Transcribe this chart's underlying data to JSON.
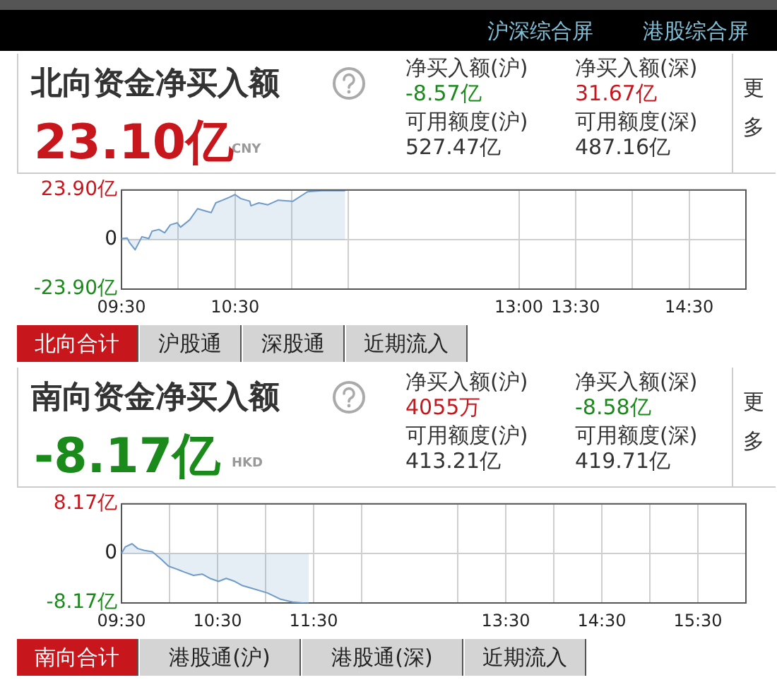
{
  "chart_data": [
    {
      "type": "other",
      "annotations": [
        "沪深综合屏",
        "港股综合屏"
      ]
    },
    {
      "type": "area",
      "title": "北向资金净买入额",
      "color": "#6f9bc8",
      "grid": true,
      "x": [
        9.5,
        9.55,
        9.57,
        9.62,
        9.68,
        9.74,
        9.77,
        9.83,
        9.88,
        9.93,
        9.99,
        10.02,
        10.1,
        10.17,
        10.25,
        10.29,
        10.33,
        10.39,
        10.45,
        10.5,
        10.55,
        10.63,
        10.64,
        10.71,
        10.79,
        10.88,
        11.01,
        11.1,
        11.14,
        11.26,
        11.39,
        11.47
      ],
      "values": [
        0.5,
        0.8,
        -1.4,
        -4.9,
        1.4,
        0.5,
        4.1,
        4.9,
        3.3,
        7.1,
        8.1,
        6.0,
        9.5,
        14.9,
        13.6,
        13.0,
        17.7,
        19.0,
        20.4,
        21.7,
        19.8,
        18.5,
        16.3,
        17.7,
        16.8,
        19.0,
        18.5,
        21.7,
        23.1,
        23.6,
        23.6,
        23.6
      ],
      "xlim": [
        9.5,
        15
      ],
      "xticks": [
        {
          "value": 9.5,
          "label": "09:30"
        },
        {
          "value": 10,
          "label": null
        },
        {
          "value": 10.5,
          "label": "10:30"
        },
        {
          "value": 11,
          "label": null
        },
        {
          "value": 11.5,
          "label": null
        },
        {
          "value": 13,
          "label": "13:00"
        },
        {
          "value": 13.5,
          "label": "13:30"
        },
        {
          "value": 14,
          "label": null
        },
        {
          "value": 14.5,
          "label": "14:30"
        },
        {
          "value": 15,
          "label": null
        }
      ],
      "ylim": [
        -23.9,
        23.9
      ],
      "yticks": [
        {
          "value": -23.9,
          "label": "-23.90亿"
        },
        0,
        {
          "value": 23.9,
          "label": "23.90亿"
        }
      ],
      "annotations": [
        "23.10亿",
        "CNY",
        "净买入额(沪)",
        "-8.57亿",
        "净买入额(深)",
        "31.67亿",
        "可用额度(沪)",
        "527.47亿",
        "可用额度(深)",
        "487.16亿",
        "更多",
        "北向合计",
        "沪股通",
        "深股通",
        "近期流入"
      ]
    },
    {
      "type": "area",
      "title": "南向资金净买入额",
      "color": "#6f9bc8",
      "grid": true,
      "x": [
        9.5,
        9.54,
        9.61,
        9.67,
        9.74,
        9.82,
        9.91,
        9.99,
        10.08,
        10.16,
        10.25,
        10.34,
        10.42,
        10.51,
        10.59,
        10.68,
        10.76,
        10.85,
        11.02,
        11.15,
        11.28,
        11.41,
        11.45
      ],
      "values": [
        0,
        1.1,
        1.6,
        0.8,
        0.5,
        0.3,
        -0.9,
        -2.1,
        -2.6,
        -3.1,
        -3.6,
        -3.4,
        -4.1,
        -4.6,
        -4.1,
        -4.6,
        -5.3,
        -5.7,
        -6.5,
        -7.5,
        -8.0,
        -8.17,
        -8.17
      ],
      "xlim": [
        9.5,
        16
      ],
      "xticks": [
        {
          "value": 9.5,
          "label": "09:30"
        },
        {
          "value": 10,
          "label": null
        },
        {
          "value": 10.5,
          "label": "10:30"
        },
        {
          "value": 11,
          "label": null
        },
        {
          "value": 11.5,
          "label": "11:30"
        },
        {
          "value": 12,
          "label": null
        },
        {
          "value": 13,
          "label": null
        },
        {
          "value": 13.5,
          "label": "13:30"
        },
        {
          "value": 14,
          "label": null
        },
        {
          "value": 14.5,
          "label": "14:30"
        },
        {
          "value": 15,
          "label": null
        },
        {
          "value": 15.5,
          "label": "15:30"
        }
      ],
      "ylim": [
        -8.17,
        8.17
      ],
      "yticks": [
        {
          "value": -8.17,
          "label": "-8.17亿"
        },
        0,
        {
          "value": 8.17,
          "label": "8.17亿"
        }
      ],
      "annotations": [
        "-8.17亿",
        "HKD",
        "净买入额(沪)",
        "4055万",
        "净买入额(深)",
        "-8.58亿",
        "可用额度(沪)",
        "413.21亿",
        "可用额度(深)",
        "419.71亿",
        "更多",
        "南向合计",
        "港股通(沪)",
        "港股通(深)",
        "近期流入"
      ]
    }
  ]
}
